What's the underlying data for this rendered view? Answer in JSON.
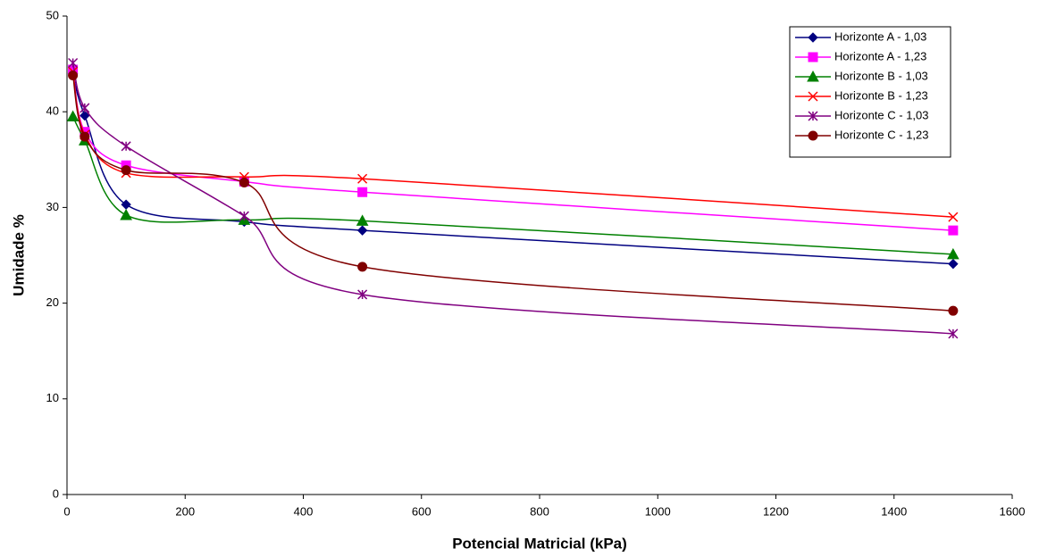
{
  "chart_data": {
    "type": "line",
    "xlabel": "Potencial Matricial (kPa)",
    "ylabel": "Umidade %",
    "x": [
      10,
      30,
      100,
      300,
      500,
      1500
    ],
    "xlim": [
      0,
      1600
    ],
    "xticks": [
      0,
      200,
      400,
      600,
      800,
      1000,
      1200,
      1400,
      1600
    ],
    "ylim": [
      0,
      50
    ],
    "yticks": [
      0,
      10,
      20,
      30,
      40,
      50
    ],
    "grid": false,
    "legend": "upper right",
    "series": [
      {
        "name": "Horizonte A - 1,03",
        "color": "#000080",
        "marker": "diamond",
        "values": [
          44,
          39.6,
          30.3,
          28.5,
          27.6,
          24.1
        ]
      },
      {
        "name": "Horizonte A - 1,23",
        "color": "#ff00ff",
        "marker": "square",
        "values": [
          44.4,
          37.9,
          34.4,
          32.7,
          31.6,
          27.6
        ]
      },
      {
        "name": "Horizonte B - 1,03",
        "color": "#008000",
        "marker": "triangle",
        "values": [
          39.5,
          37.0,
          29.2,
          28.7,
          28.6,
          25.1
        ]
      },
      {
        "name": "Horizonte B - 1,23",
        "color": "#ff0000",
        "marker": "x",
        "values": [
          44.2,
          37.6,
          33.6,
          33.2,
          33.0,
          29.0
        ]
      },
      {
        "name": "Horizonte C - 1,03",
        "color": "#800080",
        "marker": "star",
        "values": [
          45.1,
          40.4,
          36.4,
          29.1,
          20.9,
          16.8
        ]
      },
      {
        "name": "Horizonte C - 1,23",
        "color": "#800000",
        "marker": "circle",
        "values": [
          43.8,
          37.4,
          33.9,
          32.6,
          23.8,
          19.2
        ]
      }
    ]
  }
}
